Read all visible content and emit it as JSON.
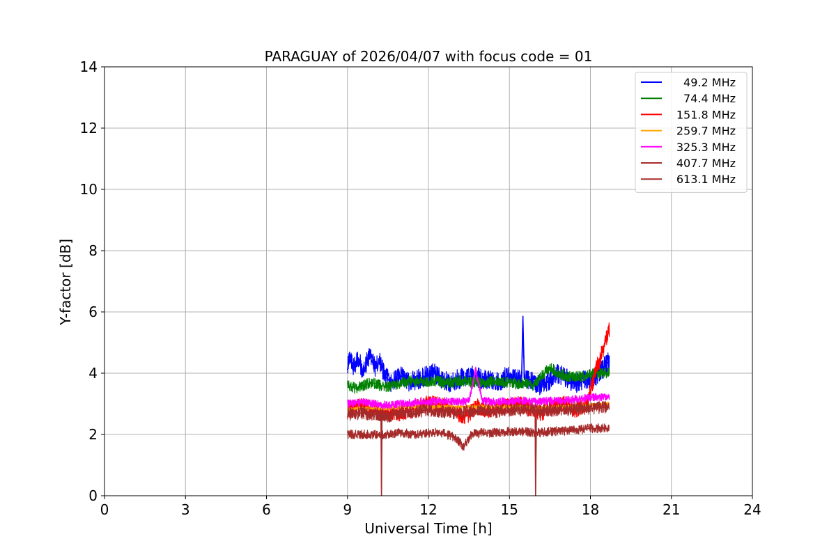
{
  "chart_data": {
    "type": "line",
    "title": "PARAGUAY of 2026/04/07 with focus code = 01",
    "xlabel": "Universal Time [h]",
    "ylabel": "Y-factor [dB]",
    "xlim": [
      0,
      24
    ],
    "ylim": [
      0,
      14
    ],
    "xticks": [
      0,
      3,
      6,
      9,
      12,
      15,
      18,
      21,
      24
    ],
    "yticks": [
      0,
      2,
      4,
      6,
      8,
      10,
      12,
      14
    ],
    "grid": true,
    "legend_position": "top-right",
    "series": [
      {
        "name": "49.2 MHz",
        "color": "#0000ff",
        "x": [
          9.0,
          9.1,
          9.2,
          9.4,
          9.6,
          9.8,
          10.0,
          10.2,
          10.4,
          10.6,
          10.8,
          11.0,
          11.3,
          11.6,
          11.9,
          12.2,
          12.5,
          12.8,
          13.1,
          13.4,
          13.7,
          14.0,
          14.3,
          14.6,
          14.9,
          15.2,
          15.45,
          15.5,
          15.55,
          15.8,
          16.1,
          16.4,
          16.7,
          17.0,
          17.3,
          17.6,
          17.9,
          18.2,
          18.5,
          18.7
        ],
        "y": [
          4.1,
          4.6,
          4.2,
          4.5,
          4.0,
          4.6,
          4.2,
          4.4,
          3.9,
          3.7,
          3.8,
          3.9,
          3.7,
          3.8,
          3.9,
          4.0,
          3.8,
          3.7,
          3.8,
          3.9,
          3.9,
          3.8,
          3.8,
          3.7,
          3.9,
          3.8,
          3.8,
          5.85,
          3.8,
          3.8,
          3.6,
          3.7,
          4.0,
          3.9,
          3.7,
          3.7,
          3.8,
          3.9,
          4.2,
          4.4
        ],
        "band": 0.55
      },
      {
        "name": "74.4 MHz",
        "color": "#008000",
        "x": [
          9.0,
          9.3,
          9.6,
          9.9,
          10.2,
          10.5,
          10.8,
          11.1,
          11.4,
          11.7,
          12.0,
          12.3,
          12.6,
          12.9,
          13.2,
          13.5,
          13.8,
          14.1,
          14.4,
          14.7,
          15.0,
          15.3,
          15.6,
          15.9,
          16.2,
          16.5,
          16.8,
          17.1,
          17.4,
          17.7,
          18.0,
          18.3,
          18.7
        ],
        "y": [
          3.6,
          3.5,
          3.6,
          3.7,
          3.6,
          3.55,
          3.6,
          3.7,
          3.75,
          3.7,
          3.7,
          3.75,
          3.7,
          3.7,
          3.75,
          3.7,
          3.7,
          3.7,
          3.75,
          3.7,
          3.7,
          3.65,
          3.7,
          3.6,
          3.9,
          4.2,
          4.0,
          3.9,
          3.9,
          3.9,
          3.95,
          4.0,
          4.0
        ],
        "band": 0.3
      },
      {
        "name": "151.8 MHz",
        "color": "#ff0000",
        "x": [
          9.0,
          9.4,
          9.8,
          10.2,
          10.6,
          11.0,
          11.4,
          11.8,
          12.2,
          12.6,
          13.0,
          13.4,
          13.8,
          14.2,
          14.6,
          15.0,
          15.4,
          15.8,
          16.2,
          16.6,
          17.0,
          17.4,
          17.8,
          18.0,
          18.2,
          18.4,
          18.55,
          18.7
        ],
        "y": [
          2.8,
          2.9,
          2.9,
          2.8,
          2.7,
          2.7,
          2.8,
          3.0,
          3.0,
          2.9,
          2.7,
          2.6,
          2.9,
          2.8,
          2.9,
          2.9,
          3.0,
          2.8,
          2.7,
          2.9,
          3.0,
          2.8,
          2.9,
          3.4,
          4.1,
          4.6,
          5.0,
          5.4
        ],
        "band": 0.45
      },
      {
        "name": "259.7 MHz",
        "color": "#ffa500",
        "x": [
          9.0,
          9.5,
          10.0,
          10.5,
          11.0,
          11.5,
          12.0,
          12.5,
          13.0,
          13.5,
          14.0,
          14.5,
          15.0,
          15.5,
          16.0,
          16.5,
          17.0,
          17.5,
          18.0,
          18.7
        ],
        "y": [
          2.8,
          2.85,
          2.85,
          2.85,
          2.9,
          2.9,
          2.9,
          2.9,
          2.9,
          2.9,
          2.9,
          2.9,
          2.9,
          2.9,
          2.85,
          2.9,
          2.9,
          2.9,
          2.95,
          3.0
        ],
        "band": 0.1
      },
      {
        "name": "325.3 MHz",
        "color": "#ff00ff",
        "x": [
          9.0,
          9.5,
          10.0,
          10.5,
          11.0,
          11.5,
          12.0,
          12.5,
          13.0,
          13.5,
          13.75,
          14.0,
          14.5,
          15.0,
          15.5,
          16.0,
          16.5,
          17.0,
          17.5,
          18.0,
          18.7
        ],
        "y": [
          3.0,
          3.05,
          3.0,
          2.95,
          3.0,
          3.05,
          3.05,
          3.1,
          3.05,
          3.1,
          4.1,
          3.1,
          3.05,
          3.1,
          3.1,
          3.05,
          3.1,
          3.1,
          3.15,
          3.2,
          3.25
        ],
        "band": 0.22
      },
      {
        "name": "407.7 MHz",
        "color": "#a52a2a",
        "x": [
          9.0,
          9.5,
          10.0,
          10.24,
          10.26,
          10.28,
          10.5,
          11.0,
          11.5,
          12.0,
          12.5,
          13.0,
          13.5,
          14.0,
          14.5,
          15.0,
          15.5,
          15.95,
          15.97,
          16.0,
          16.1,
          16.5,
          17.0,
          17.5,
          18.0,
          18.7
        ],
        "y": [
          2.65,
          2.7,
          2.65,
          2.65,
          0.0,
          2.65,
          2.6,
          2.7,
          2.75,
          2.8,
          2.75,
          2.7,
          2.75,
          2.8,
          2.75,
          2.8,
          2.8,
          2.8,
          0.0,
          2.8,
          2.75,
          2.8,
          2.8,
          2.85,
          2.85,
          2.9
        ],
        "band": 0.35
      },
      {
        "name": "613.1 MHz",
        "color": "#a52a2a",
        "x": [
          9.0,
          9.5,
          10.0,
          10.5,
          11.0,
          11.5,
          12.0,
          12.5,
          13.0,
          13.3,
          13.6,
          14.0,
          14.5,
          15.0,
          15.5,
          16.0,
          16.5,
          17.0,
          17.5,
          18.0,
          18.7
        ],
        "y": [
          2.0,
          2.0,
          2.0,
          2.0,
          2.05,
          2.0,
          2.05,
          2.05,
          1.9,
          1.6,
          2.0,
          2.05,
          2.05,
          2.1,
          2.1,
          2.05,
          2.1,
          2.1,
          2.15,
          2.2,
          2.2
        ],
        "band": 0.25
      }
    ]
  }
}
